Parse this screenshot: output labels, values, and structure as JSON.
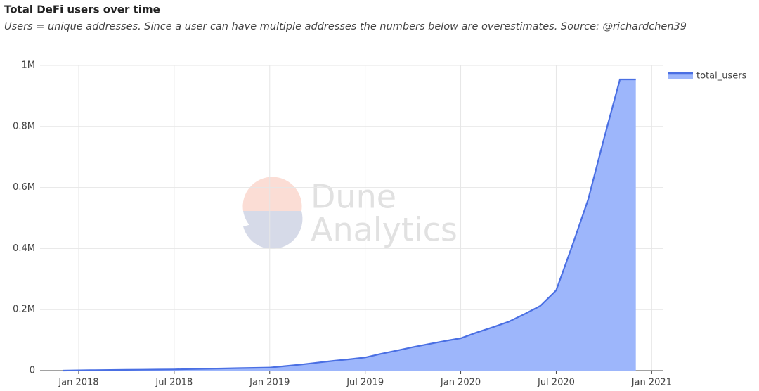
{
  "chart_data": {
    "type": "area",
    "title": "Total DeFi users over time",
    "subtitle": "Users = unique addresses. Since a user can have multiple addresses the numbers below are overestimates. Source: @richardchen39",
    "watermark": [
      "Dune",
      "Analytics"
    ],
    "x": [
      "2017-12",
      "2018-01",
      "2018-02",
      "2018-03",
      "2018-04",
      "2018-05",
      "2018-06",
      "2018-07",
      "2018-08",
      "2018-09",
      "2018-10",
      "2018-11",
      "2018-12",
      "2019-01",
      "2019-02",
      "2019-03",
      "2019-04",
      "2019-05",
      "2019-06",
      "2019-07",
      "2019-08",
      "2019-09",
      "2019-10",
      "2019-11",
      "2019-12",
      "2020-01",
      "2020-02",
      "2020-03",
      "2020-04",
      "2020-05",
      "2020-06",
      "2020-07",
      "2020-08",
      "2020-09",
      "2020-10",
      "2020-11",
      "2020-12"
    ],
    "series": [
      {
        "name": "total_users",
        "color": "#4a6fe3",
        "fill": "#9db6fb",
        "values": [
          0,
          1000,
          1500,
          2000,
          2500,
          3000,
          3500,
          4000,
          5000,
          6000,
          7000,
          8000,
          9000,
          10000,
          15000,
          20000,
          26000,
          32000,
          37000,
          43000,
          55000,
          66000,
          77000,
          87000,
          97000,
          106000,
          125000,
          142000,
          160000,
          185000,
          212000,
          263000,
          408000,
          560000,
          760000,
          954000,
          954000
        ]
      }
    ],
    "xlim": [
      "2017-10",
      "2021-02"
    ],
    "xticks": [
      {
        "value": "2018-01",
        "label": "Jan 2018"
      },
      {
        "value": "2018-07",
        "label": "Jul 2018"
      },
      {
        "value": "2019-01",
        "label": "Jan 2019"
      },
      {
        "value": "2019-07",
        "label": "Jul 2019"
      },
      {
        "value": "2020-01",
        "label": "Jan 2020"
      },
      {
        "value": "2020-07",
        "label": "Jul 2020"
      },
      {
        "value": "2021-01",
        "label": "Jan 2021"
      }
    ],
    "ylim": [
      0,
      1000000
    ],
    "yticks": [
      0,
      {
        "value": 200000,
        "label": "0.2M"
      },
      {
        "value": 400000,
        "label": "0.4M"
      },
      {
        "value": 600000,
        "label": "0.6M"
      },
      {
        "value": 800000,
        "label": "0.8M"
      },
      {
        "value": 1000000,
        "label": "1M"
      }
    ],
    "grid": true,
    "legend": "top-right"
  }
}
